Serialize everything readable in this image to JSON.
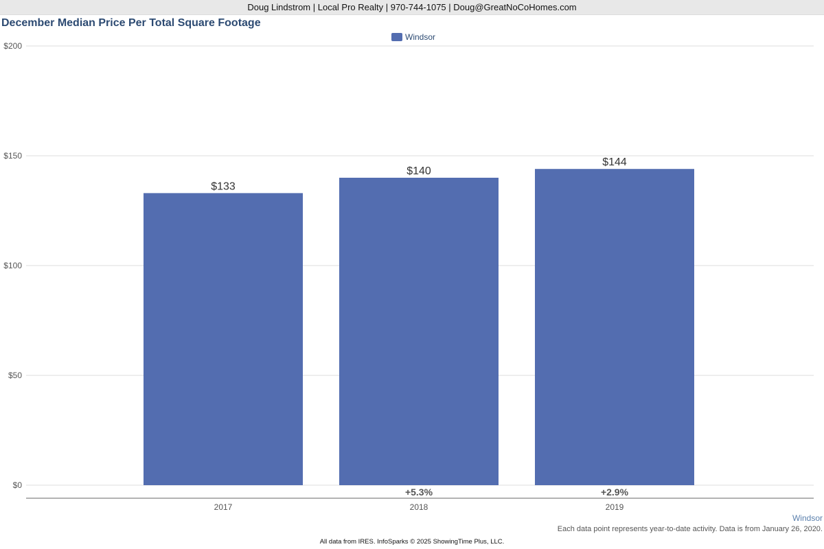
{
  "header": {
    "contact": "Doug Lindstrom | Local Pro Realty | 970-744-1075 | Doug@GreatNoCoHomes.com"
  },
  "chart_data": {
    "type": "bar",
    "title": "December Median Price Per Total Square Footage",
    "categories": [
      "2017",
      "2018",
      "2019"
    ],
    "series": [
      {
        "name": "Windsor",
        "values": [
          133,
          140,
          144
        ],
        "value_labels": [
          "$133",
          "$140",
          "$144"
        ],
        "color": "#536db0"
      }
    ],
    "change_labels": [
      "",
      "+5.3%",
      "+2.9%"
    ],
    "yticks": [
      0,
      50,
      100,
      150,
      200
    ],
    "ytick_labels": [
      "$0",
      "$50",
      "$100",
      "$150",
      "$200"
    ],
    "ylim": [
      0,
      200
    ],
    "grid": true,
    "legend_position": "top-center",
    "series_label": "Windsor",
    "note": "Each data point represents year-to-date activity. Data is from January 26, 2020."
  },
  "footer": {
    "text": "All data from IRES. InfoSparks © 2025 ShowingTime Plus, LLC."
  }
}
